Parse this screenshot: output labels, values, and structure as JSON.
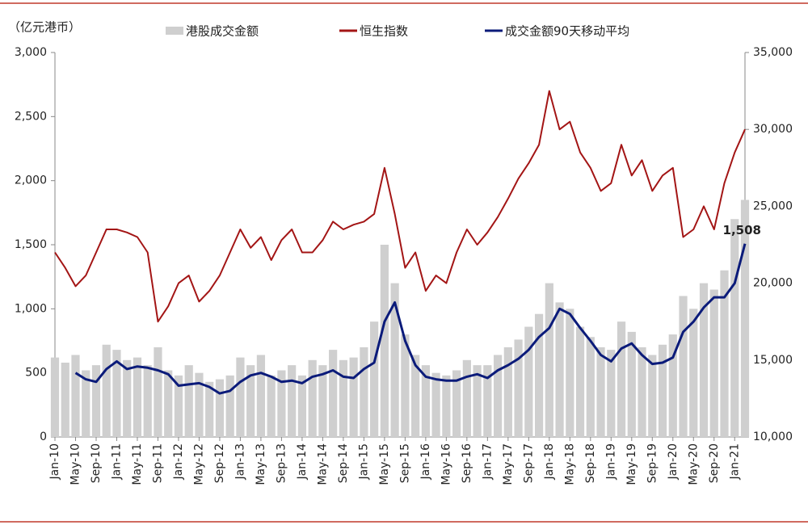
{
  "chart_data": {
    "type": "combo",
    "unit_label": "（亿元港币）",
    "categories": [
      "Jan-10",
      null,
      "May-10",
      null,
      "Sep-10",
      null,
      "Jan-11",
      null,
      "May-11",
      null,
      "Sep-11",
      null,
      "Jan-12",
      null,
      "May-12",
      null,
      "Sep-12",
      null,
      "Jan-13",
      null,
      "May-13",
      null,
      "Sep-13",
      null,
      "Jan-14",
      null,
      "May-14",
      null,
      "Sep-14",
      null,
      "Jan-15",
      null,
      "May-15",
      null,
      "Sep-15",
      null,
      "Jan-16",
      null,
      "May-16",
      null,
      "Sep-16",
      null,
      "Jan-17",
      null,
      "May-17",
      null,
      "Sep-17",
      null,
      "Jan-18",
      null,
      "May-18",
      null,
      "Sep-18",
      null,
      "Jan-19",
      null,
      "May-19",
      null,
      "Sep-19",
      null,
      "Jan-20",
      null,
      "May-20",
      null,
      "Sep-20",
      null,
      "Jan-21",
      null
    ],
    "series": [
      {
        "name": "港股成交金额",
        "type": "bar",
        "color": "#cfcfcf",
        "values": [
          620,
          580,
          640,
          520,
          560,
          720,
          680,
          600,
          620,
          560,
          700,
          520,
          480,
          560,
          500,
          430,
          450,
          480,
          620,
          560,
          640,
          480,
          520,
          560,
          480,
          600,
          560,
          680,
          600,
          620,
          700,
          900,
          1500,
          1200,
          800,
          640,
          560,
          500,
          480,
          520,
          600,
          560,
          560,
          640,
          700,
          760,
          860,
          960,
          1200,
          1050,
          1000,
          860,
          780,
          700,
          680,
          900,
          820,
          700,
          640,
          720,
          800,
          1100,
          1000,
          1200,
          1150,
          1300,
          1700,
          1850
        ]
      },
      {
        "name": "恒生指数",
        "type": "line",
        "color": "#a31515",
        "axis": "y2",
        "values": [
          22000,
          21000,
          19800,
          20500,
          22000,
          23500,
          23500,
          23300,
          23000,
          22000,
          17500,
          18500,
          20000,
          20500,
          18800,
          19500,
          20500,
          22000,
          23500,
          22300,
          23000,
          21500,
          22800,
          23500,
          22000,
          22000,
          22800,
          24000,
          23500,
          23800,
          24000,
          24500,
          27500,
          24500,
          21000,
          22000,
          19500,
          20500,
          20000,
          22000,
          23500,
          22500,
          23300,
          24300,
          25500,
          26800,
          27800,
          29000,
          32500,
          30000,
          30500,
          28500,
          27500,
          26000,
          26500,
          29000,
          27000,
          28000,
          26000,
          27000,
          27500,
          23000,
          23500,
          25000,
          23500,
          26500,
          28500,
          30000
        ]
      },
      {
        "name": "成交金额90天移动平均",
        "type": "line",
        "color": "#0b1b7a",
        "values": [
          null,
          null,
          500,
          450,
          430,
          530,
          590,
          530,
          550,
          540,
          520,
          490,
          400,
          410,
          420,
          390,
          340,
          360,
          430,
          480,
          500,
          470,
          430,
          440,
          420,
          470,
          490,
          520,
          470,
          460,
          530,
          580,
          900,
          1050,
          750,
          560,
          470,
          450,
          440,
          440,
          470,
          490,
          460,
          520,
          560,
          610,
          680,
          780,
          850,
          1000,
          960,
          850,
          750,
          640,
          590,
          690,
          730,
          640,
          570,
          580,
          620,
          820,
          900,
          1010,
          1090,
          1090,
          1200,
          1508
        ],
        "value_labels": [
          null,
          null,
          null,
          null,
          null,
          null,
          null,
          null,
          null,
          null,
          null,
          null,
          null,
          null,
          null,
          null,
          null,
          null,
          null,
          null,
          null,
          null,
          null,
          null,
          null,
          null,
          null,
          null,
          null,
          null,
          null,
          null,
          null,
          null,
          null,
          null,
          null,
          null,
          null,
          null,
          null,
          null,
          null,
          null,
          null,
          null,
          null,
          null,
          null,
          null,
          null,
          null,
          null,
          null,
          null,
          null,
          null,
          null,
          null,
          null,
          null,
          null,
          null,
          null,
          null,
          null,
          null,
          "1,508"
        ]
      }
    ],
    "ylim": [
      0,
      3000
    ],
    "yticks": [
      0,
      500,
      {
        "value": 1000,
        "label": "1,000"
      },
      {
        "value": 1500,
        "label": "1,500"
      },
      {
        "value": 2000,
        "label": "2,000"
      },
      {
        "value": 2500,
        "label": "2,500"
      },
      {
        "value": 3000,
        "label": "3,000"
      }
    ],
    "y2lim": [
      10000,
      35000
    ],
    "y2ticks": [
      {
        "value": 10000,
        "label": "10,000"
      },
      {
        "value": 15000,
        "label": "15,000"
      },
      {
        "value": 20000,
        "label": "20,000"
      },
      {
        "value": 25000,
        "label": "25,000"
      },
      {
        "value": 30000,
        "label": "30,000"
      },
      {
        "value": 35000,
        "label": "35,000"
      }
    ],
    "grid": false
  }
}
